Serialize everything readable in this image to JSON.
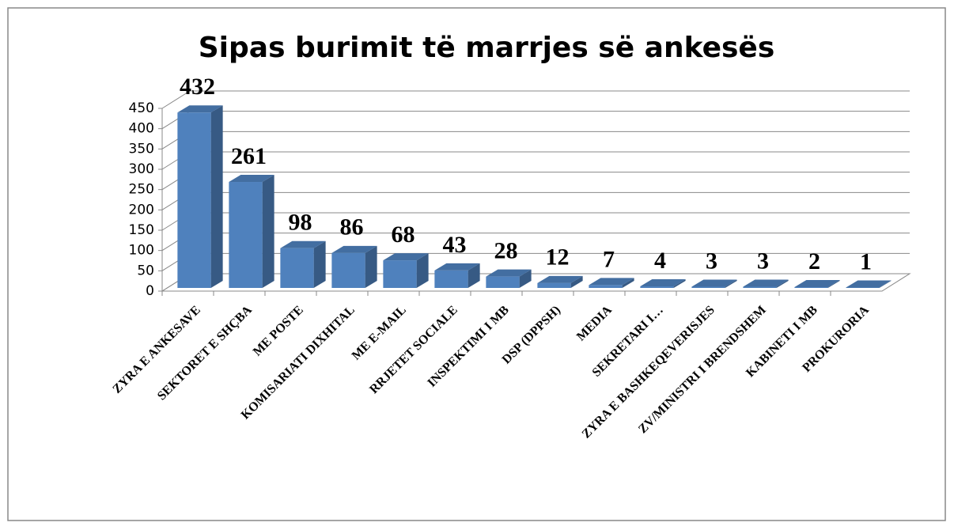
{
  "chart_data": {
    "type": "bar3d",
    "title": "Sipas burimit të marrjes së ankesës",
    "categories": [
      "ZYRA E ANKESAVE",
      "SEKTORET E SHÇBA",
      "ME POSTE",
      "KOMISARIATI DIXHITAL",
      "ME E-MAIL",
      "RRJETET SOCIALE",
      "INSPEKTIMI I MB",
      "DSP (DPPSH)",
      "MEDIA",
      "SEKRETARI I…",
      "ZYRA E BASHKEQEVERISJES",
      "ZV/MINISTRI I BRENDSHEM",
      "KABINETI I MB",
      "PROKURORIA"
    ],
    "values": [
      432,
      261,
      98,
      86,
      68,
      43,
      28,
      12,
      7,
      4,
      3,
      3,
      2,
      1
    ],
    "color": "#4f81bd",
    "ylim": [
      0,
      450
    ],
    "yticks": [
      0,
      50,
      100,
      150,
      200,
      250,
      300,
      350,
      400,
      450
    ],
    "grid": true
  }
}
